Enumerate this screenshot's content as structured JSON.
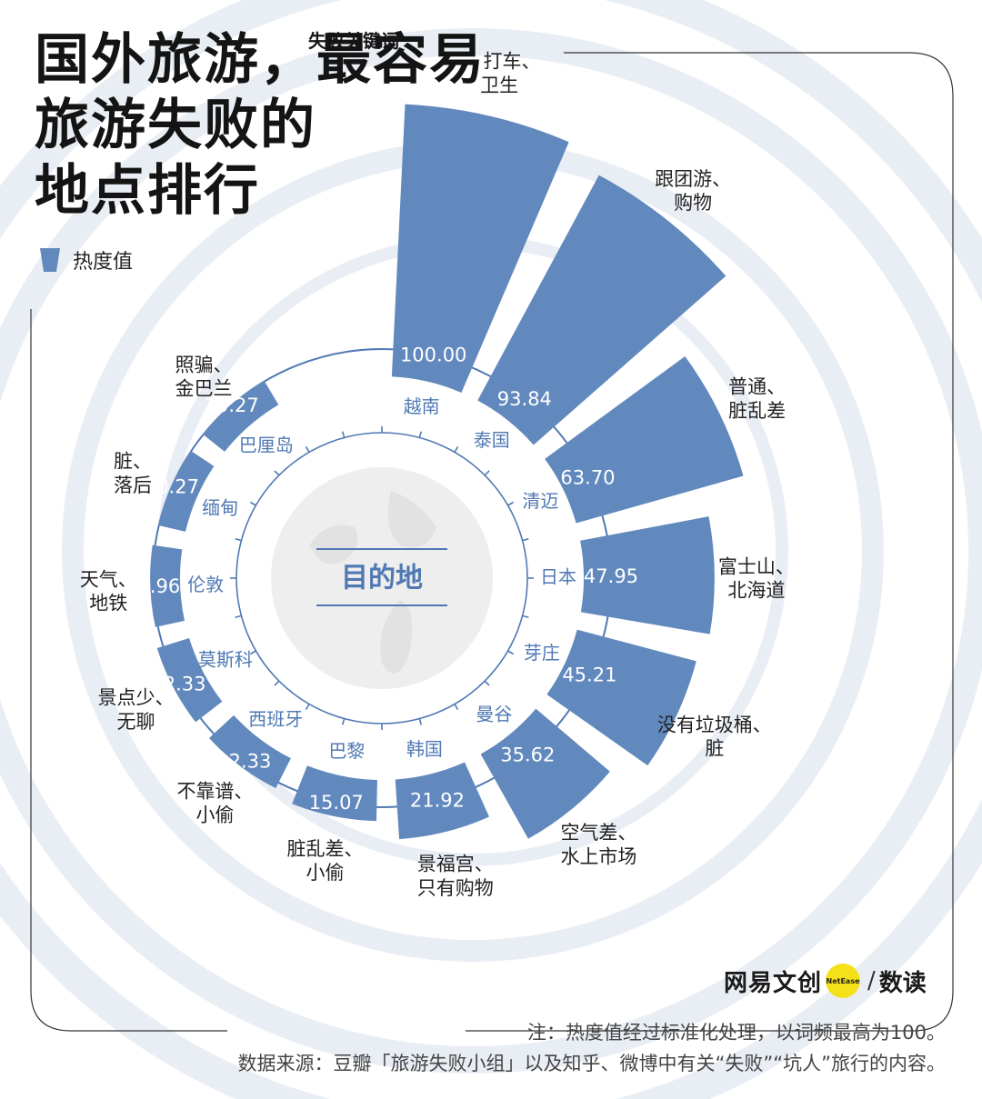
{
  "header": {
    "title_lines": [
      "国外旅游，最容易",
      "旅游失败的",
      "地点排行"
    ]
  },
  "legend": {
    "label": "热度值",
    "color": "#6289bd"
  },
  "colors": {
    "bar": "#6289bd",
    "ring_bg": "#e9eef5",
    "text_blue": "#5079b4",
    "dark": "#222222"
  },
  "chart_data": {
    "type": "bar",
    "layout": "radial",
    "center_label": "目的地",
    "keyword_header": "失败关键词",
    "legend": "热度值",
    "ylim": [
      0,
      100
    ],
    "categories": [
      "越南",
      "泰国",
      "清迈",
      "日本",
      "芽庄",
      "曼谷",
      "韩国",
      "巴黎",
      "西班牙",
      "莫斯科",
      "伦敦",
      "缅甸",
      "巴厘岛"
    ],
    "values": [
      100.0,
      93.84,
      63.7,
      47.95,
      45.21,
      35.62,
      21.92,
      15.07,
      12.33,
      12.33,
      10.96,
      10.27,
      10.27
    ],
    "value_labels": [
      "100.00",
      "93.84",
      "63.70",
      "47.95",
      "45.21",
      "35.62",
      "21.92",
      "15.07",
      "12.33",
      "12.33",
      "10.96",
      "10.27",
      "10.27"
    ],
    "keywords": [
      "一 打车、卫生",
      "跟团游、购物",
      "普通、脏乱差",
      "富士山、北海道",
      "没有垃圾桶、脏",
      "空气差、水上市场",
      "景福宫、只有购物",
      "脏乱差、小偷",
      "不靠谱、小偷",
      "景点少、无聊",
      "天气、地铁",
      "脏、落后",
      "照骗、金巴兰"
    ]
  },
  "footer": {
    "note": "注：热度值经过标准化处理，以词频最高为100。",
    "source": "数据来源：豆瓣「旅游失败小组」以及知乎、微博中有关“失败”“坑人”旅行的内容。",
    "brand_name": "网易文创",
    "brand_badge": "NetEase",
    "brand_product": "数读"
  }
}
